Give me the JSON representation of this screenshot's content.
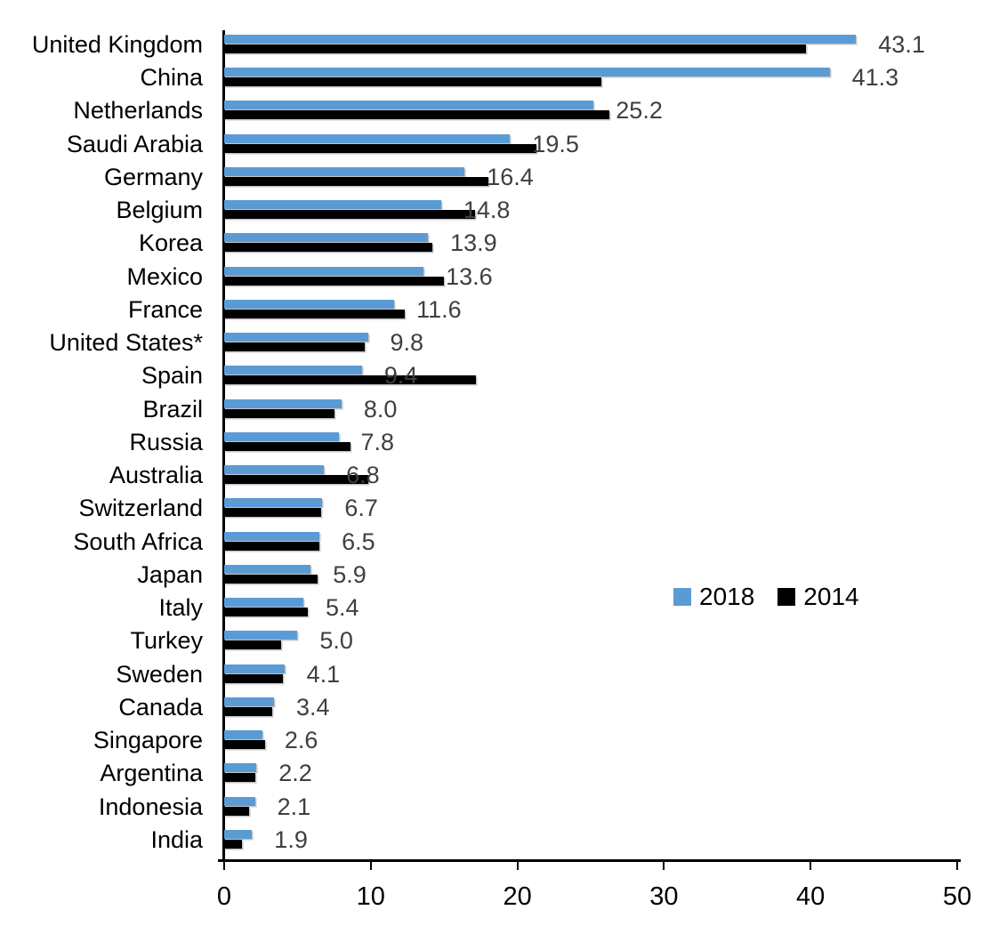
{
  "chart_data": {
    "type": "bar",
    "orientation": "horizontal",
    "title": "",
    "xlabel": "",
    "ylabel": "",
    "xlim": [
      0,
      50
    ],
    "xticks": [
      "0",
      "10",
      "20",
      "30",
      "40",
      "50"
    ],
    "grid": false,
    "legend_position": "middle-right",
    "categories": [
      "United Kingdom",
      "China",
      "Netherlands",
      "Saudi Arabia",
      "Germany",
      "Belgium",
      "Korea",
      "Mexico",
      "France",
      "United States*",
      "Spain",
      "Brazil",
      "Russia",
      "Australia",
      "Switzerland",
      "South Africa",
      "Japan",
      "Italy",
      "Turkey",
      "Sweden",
      "Canada",
      "Singapore",
      "Argentina",
      "Indonesia",
      "India"
    ],
    "series": [
      {
        "name": "2018",
        "color": "#5B9BD5",
        "values": [
          43.1,
          41.3,
          25.2,
          19.5,
          16.4,
          14.8,
          13.9,
          13.6,
          11.6,
          9.8,
          9.4,
          8.0,
          7.8,
          6.8,
          6.7,
          6.5,
          5.9,
          5.4,
          5.0,
          4.1,
          3.4,
          2.6,
          2.2,
          2.1,
          1.9
        ]
      },
      {
        "name": "2014",
        "color": "#000000",
        "values": [
          39.7,
          25.7,
          26.3,
          21.3,
          18.0,
          17.1,
          14.2,
          15.0,
          12.3,
          9.6,
          17.2,
          7.5,
          8.6,
          9.8,
          6.6,
          6.5,
          6.4,
          5.7,
          3.9,
          4.0,
          3.3,
          2.8,
          2.1,
          1.7,
          1.2
        ]
      }
    ],
    "value_labels": {
      "attached_to_series": "2018",
      "text": [
        "43.1",
        "41.3",
        "25.2",
        "19.5",
        "16.4",
        "14.8",
        "13.9",
        "13.6",
        "11.6",
        "9.8",
        "9.4",
        "8.0",
        "7.8",
        "6.8",
        "6.7",
        "6.5",
        "5.9",
        "5.4",
        "5.0",
        "4.1",
        "3.4",
        "2.6",
        "2.2",
        "2.1",
        "1.9"
      ]
    }
  },
  "legend": {
    "items": [
      {
        "label": "2018",
        "color": "#5B9BD5"
      },
      {
        "label": "2014",
        "color": "#000000"
      }
    ]
  },
  "colors": {
    "background": "#FFFFFF",
    "axis": "#000000",
    "category_label": "#000000",
    "value_label": "#3F3F3F",
    "bar_2018": "#5B9BD5",
    "bar_2014": "#000000"
  }
}
